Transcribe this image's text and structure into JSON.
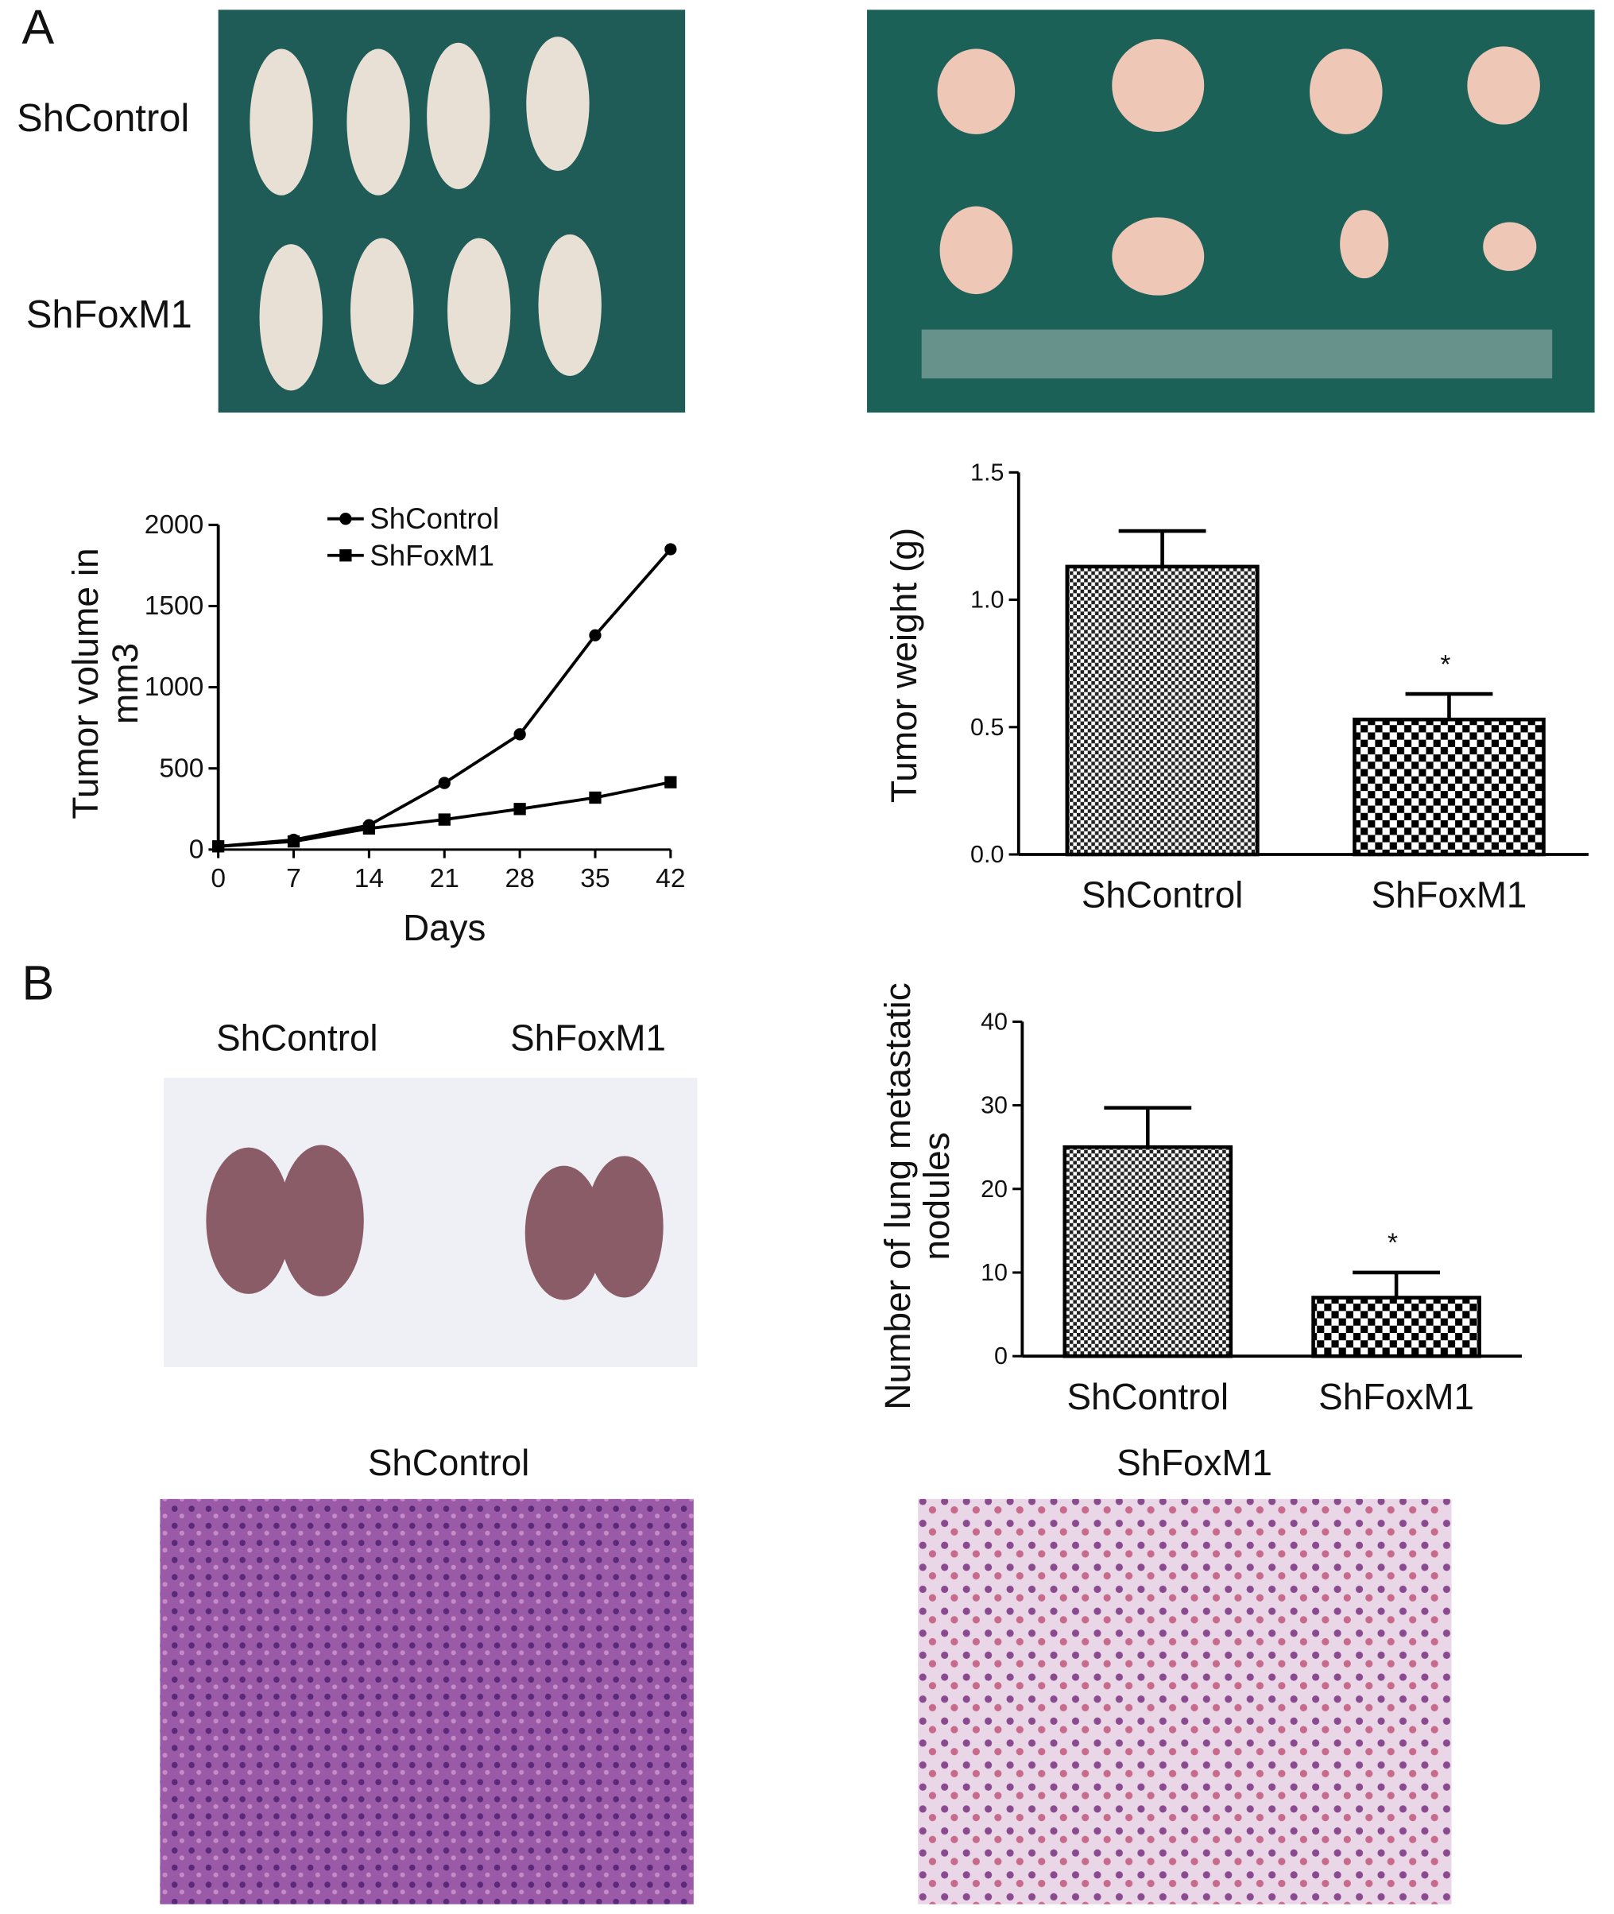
{
  "labels": {
    "panel_a": "A",
    "panel_b": "B",
    "mice_top": "ShControl",
    "mice_bottom": "ShFoxM1",
    "lung_left": "ShControl",
    "lung_right": "ShFoxM1",
    "histo_left": "ShControl",
    "histo_right": "ShFoxM1"
  },
  "chart_data": [
    {
      "type": "line",
      "y_label": [
        "Tumor volume in",
        "mm3"
      ],
      "x_label": "Days",
      "x": [
        0,
        7,
        14,
        21,
        28,
        35,
        42
      ],
      "xlim": [
        0,
        42
      ],
      "xticks": [
        0,
        7,
        14,
        21,
        28,
        35,
        42
      ],
      "ylim": [
        0,
        2000
      ],
      "yticks": [
        0,
        500,
        1000,
        1500,
        2000
      ],
      "series": [
        {
          "name": "ShControl",
          "color": "#000000",
          "marker": "circle",
          "values": [
            20,
            60,
            150,
            410,
            710,
            1320,
            1850
          ]
        },
        {
          "name": "ShFoxM1",
          "color": "#000000",
          "marker": "square",
          "values": [
            20,
            50,
            130,
            185,
            250,
            320,
            415
          ]
        }
      ]
    },
    {
      "type": "bar",
      "y_label": [
        "Tumor weight (g)"
      ],
      "categories": [
        "ShControl",
        "ShFoxM1"
      ],
      "values": [
        1.13,
        0.53
      ],
      "errors": [
        0.14,
        0.1
      ],
      "ylim": [
        0,
        1.5
      ],
      "yticks": [
        {
          "value": 0,
          "label": "0.0"
        },
        0.5,
        {
          "value": 1,
          "label": "1.0"
        },
        1.5
      ],
      "annotation": {
        "category": "ShFoxM1",
        "text": "*"
      }
    },
    {
      "type": "bar",
      "y_label": [
        "Number of lung metastatic",
        "nodules"
      ],
      "categories": [
        "ShControl",
        "ShFoxM1"
      ],
      "values": [
        25,
        7
      ],
      "errors": [
        4.7,
        3
      ],
      "ylim": [
        0,
        40
      ],
      "yticks": [
        0,
        10,
        20,
        30,
        40
      ],
      "annotation": {
        "category": "ShFoxM1",
        "text": "*"
      }
    }
  ]
}
